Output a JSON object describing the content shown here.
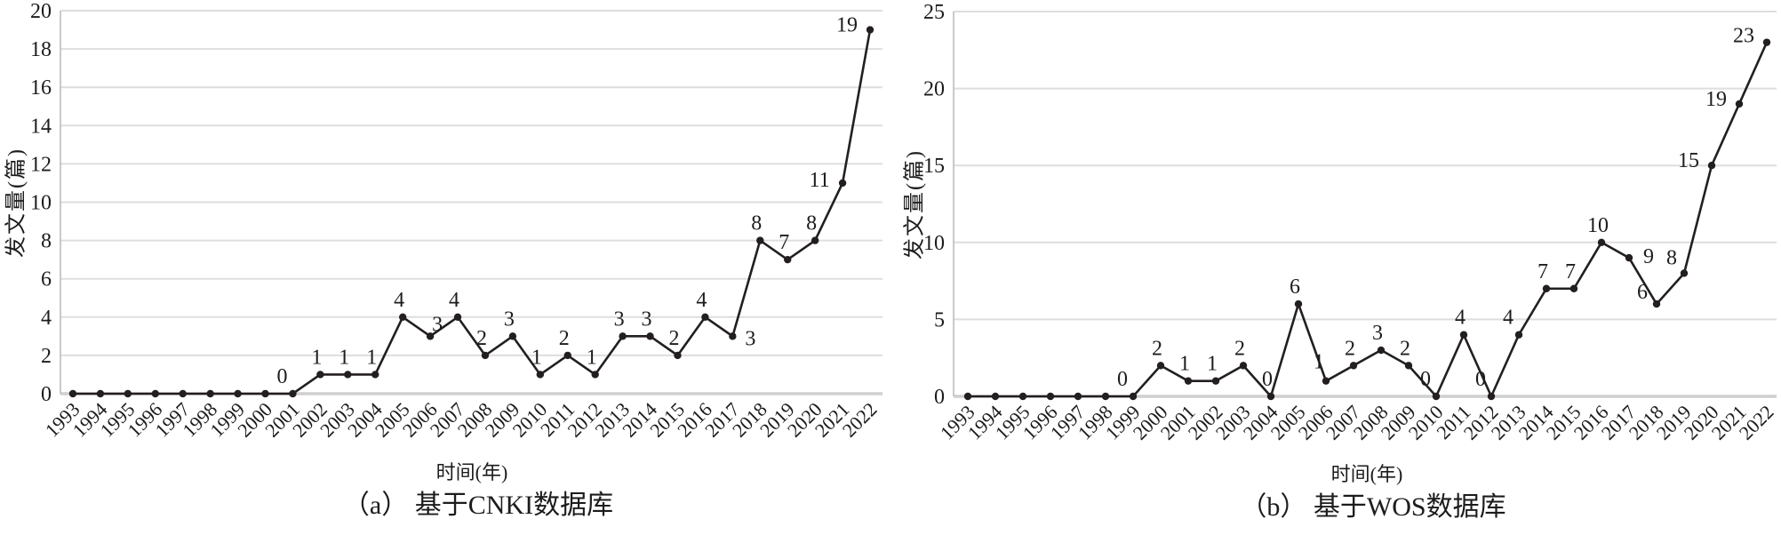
{
  "figure": {
    "background": "#ffffff"
  },
  "colors": {
    "line": "#231f20",
    "grid": "#dedede",
    "baseline": "#cfcfcf",
    "axis": "#b8b8b8",
    "text": "#1c1c1c"
  },
  "chart_data": [
    {
      "type": "line",
      "title": "（a） 基于CNKI数据库",
      "xlabel": "时间(年)",
      "ylabel": "发文量(篇)",
      "ylim": [
        0,
        20
      ],
      "yticks": [
        0,
        2,
        4,
        6,
        8,
        10,
        12,
        14,
        16,
        18,
        20
      ],
      "grid": true,
      "legend": "none",
      "categories": [
        "1993",
        "1994",
        "1995",
        "1996",
        "1997",
        "1998",
        "1999",
        "2000",
        "2001",
        "2002",
        "2003",
        "2004",
        "2005",
        "2006",
        "2007",
        "2008",
        "2009",
        "2010",
        "2011",
        "2012",
        "2013",
        "2014",
        "2015",
        "2016",
        "2017",
        "2018",
        "2019",
        "2020",
        "2021",
        "2022"
      ],
      "values": [
        0,
        0,
        0,
        0,
        0,
        0,
        0,
        0,
        0,
        1,
        1,
        1,
        4,
        3,
        4,
        2,
        3,
        1,
        2,
        1,
        3,
        3,
        2,
        4,
        3,
        8,
        7,
        8,
        11,
        19
      ],
      "point_labels": [
        "",
        "",
        "",
        "",
        "",
        "",
        "",
        "",
        "0",
        "1",
        "1",
        "1",
        "4",
        "3",
        "4",
        "2",
        "3",
        "1",
        "2",
        "1",
        "3",
        "3",
        "2",
        "4",
        "3",
        "8",
        "7",
        "8",
        "11",
        "19"
      ]
    },
    {
      "type": "line",
      "title": "（b） 基于WOS数据库",
      "xlabel": "时间(年)",
      "ylabel": "发文量(篇)",
      "ylim": [
        0,
        25
      ],
      "yticks": [
        0,
        5,
        10,
        15,
        20,
        25
      ],
      "grid": true,
      "legend": "none",
      "categories": [
        "1993",
        "1994",
        "1995",
        "1996",
        "1997",
        "1998",
        "1999",
        "2000",
        "2001",
        "2002",
        "2003",
        "2004",
        "2005",
        "2006",
        "2007",
        "2008",
        "2009",
        "2010",
        "2011",
        "2012",
        "2013",
        "2014",
        "2015",
        "2016",
        "2017",
        "2018",
        "2019",
        "2020",
        "2021",
        "2022"
      ],
      "values": [
        0,
        0,
        0,
        0,
        0,
        0,
        0,
        2,
        1,
        1,
        2,
        0,
        6,
        1,
        2,
        3,
        2,
        0,
        4,
        0,
        4,
        7,
        7,
        10,
        9,
        6,
        8,
        15,
        19,
        23
      ],
      "point_labels": [
        "",
        "",
        "",
        "",
        "",
        "",
        "0",
        "2",
        "1",
        "1",
        "2",
        "0",
        "6",
        "1",
        "2",
        "3",
        "2",
        "0",
        "4",
        "0",
        "4",
        "7",
        "7",
        "10",
        "9",
        "6",
        "8",
        "15",
        "19",
        "23"
      ]
    }
  ]
}
